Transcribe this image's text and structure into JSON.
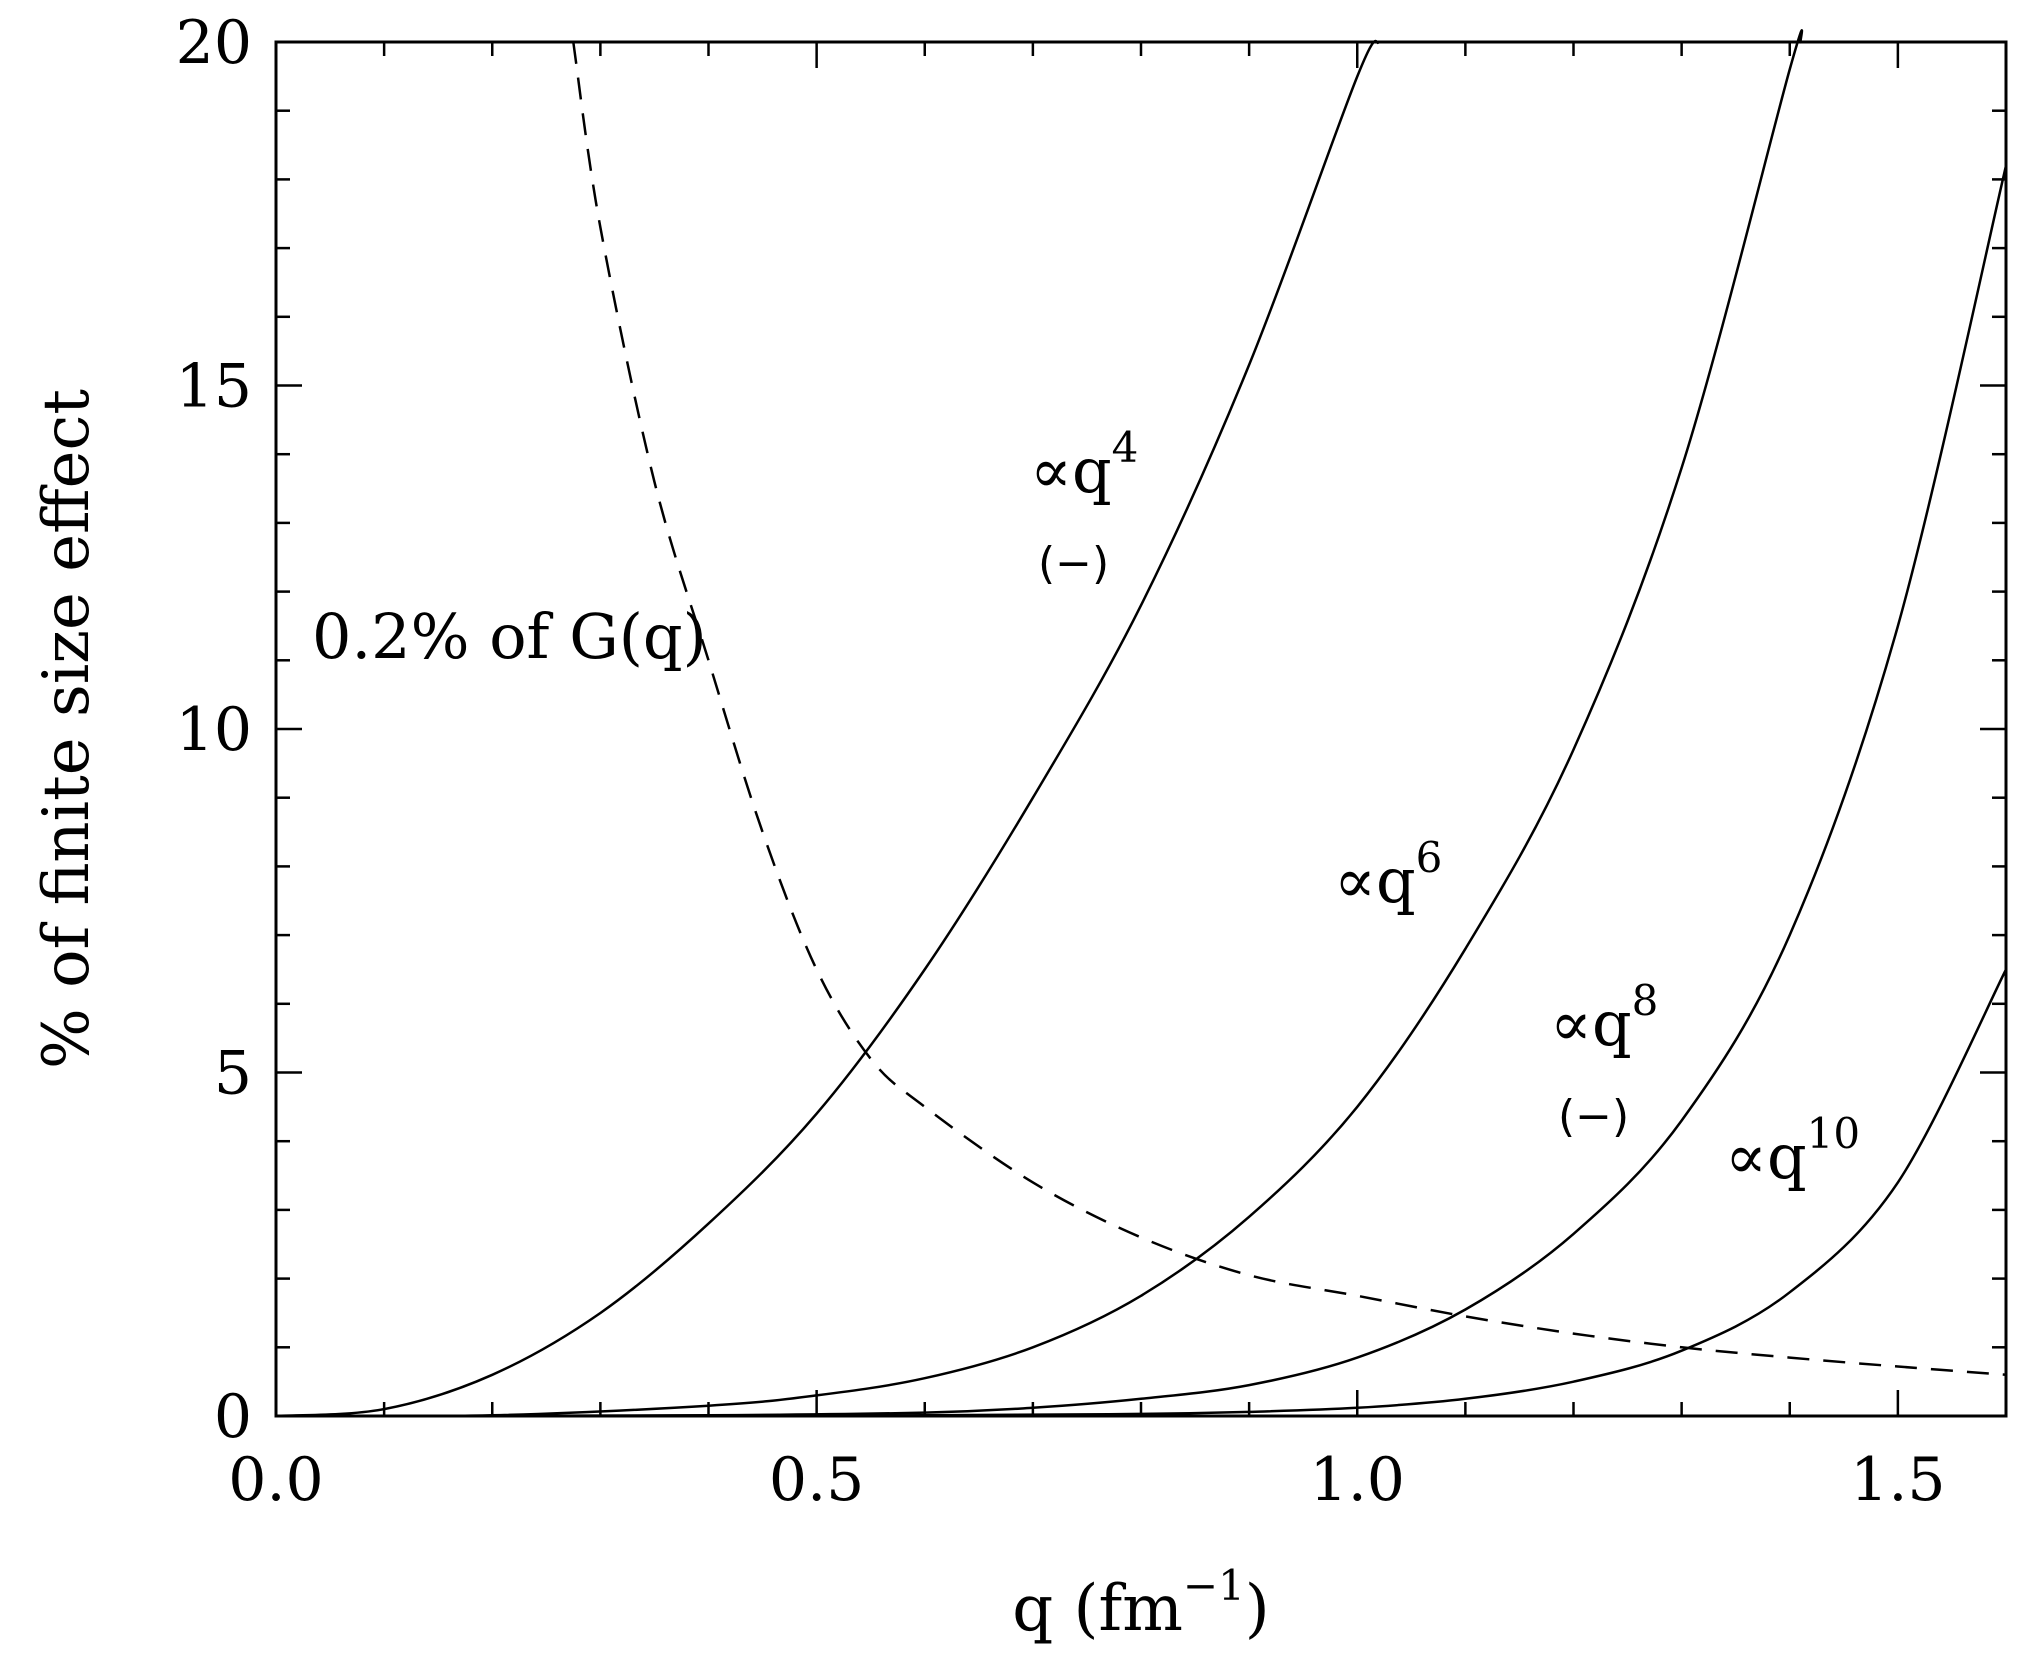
{
  "chart_data": {
    "type": "line",
    "title": "",
    "xlabel": "q (fm",
    "xlabel_sup": "−1",
    "xlabel_close": ")",
    "ylabel": "% of finite size effect",
    "xlim": [
      0,
      1.6
    ],
    "ylim": [
      0,
      20
    ],
    "x_ticks": [
      0.0,
      0.5,
      1.0,
      1.5
    ],
    "x_tick_labels": [
      "0.0",
      "0.5",
      "1.0",
      "1.5"
    ],
    "y_ticks": [
      0,
      5,
      10,
      15,
      20
    ],
    "y_tick_labels": [
      "0",
      "5",
      "10",
      "15",
      "20"
    ],
    "series": [
      {
        "style": "solid",
        "label_prefix": "∝q",
        "label_exp": "4",
        "label_sign": "(−)",
        "x": [
          0.0,
          0.1,
          0.2,
          0.3,
          0.4,
          0.5,
          0.6,
          0.7,
          0.8,
          0.9,
          1.0,
          1.02
        ],
        "y": [
          0.0,
          0.1,
          0.6,
          1.5,
          2.8,
          4.4,
          6.5,
          9.0,
          11.8,
          15.3,
          19.5,
          20.0
        ]
      },
      {
        "style": "solid",
        "label_prefix": "∝q",
        "label_exp": "6",
        "x": [
          0.0,
          0.2,
          0.4,
          0.5,
          0.6,
          0.7,
          0.8,
          0.9,
          1.0,
          1.1,
          1.2,
          1.3,
          1.4,
          1.41
        ],
        "y": [
          0.0,
          0.01,
          0.15,
          0.3,
          0.55,
          1.0,
          1.75,
          2.9,
          4.5,
          6.8,
          9.7,
          13.8,
          19.6,
          20.0
        ]
      },
      {
        "style": "solid",
        "label_prefix": "∝q",
        "label_exp": "8",
        "label_sign": "(−)",
        "x": [
          0.0,
          0.4,
          0.6,
          0.7,
          0.8,
          0.9,
          1.0,
          1.1,
          1.2,
          1.3,
          1.4,
          1.5,
          1.6
        ],
        "y": [
          0.0,
          0.01,
          0.05,
          0.12,
          0.25,
          0.45,
          0.85,
          1.55,
          2.65,
          4.3,
          7.0,
          11.5,
          18.2
        ]
      },
      {
        "style": "solid",
        "label_prefix": "∝q",
        "label_exp": "10",
        "x": [
          0.0,
          0.6,
          0.8,
          0.9,
          1.0,
          1.1,
          1.2,
          1.3,
          1.4,
          1.5,
          1.6
        ],
        "y": [
          0.0,
          0.01,
          0.03,
          0.06,
          0.12,
          0.25,
          0.5,
          0.95,
          1.8,
          3.4,
          6.5
        ]
      },
      {
        "style": "dashed",
        "label": "0.2% of G(q)",
        "x": [
          0.275,
          0.3,
          0.35,
          0.4,
          0.45,
          0.5,
          0.55,
          0.6,
          0.7,
          0.8,
          0.9,
          1.0,
          1.1,
          1.2,
          1.3,
          1.4,
          1.5,
          1.6
        ],
        "y": [
          20.0,
          17.3,
          13.6,
          11.0,
          8.5,
          6.5,
          5.2,
          4.5,
          3.4,
          2.6,
          2.05,
          1.75,
          1.45,
          1.2,
          1.0,
          0.85,
          0.72,
          0.6
        ]
      }
    ]
  }
}
